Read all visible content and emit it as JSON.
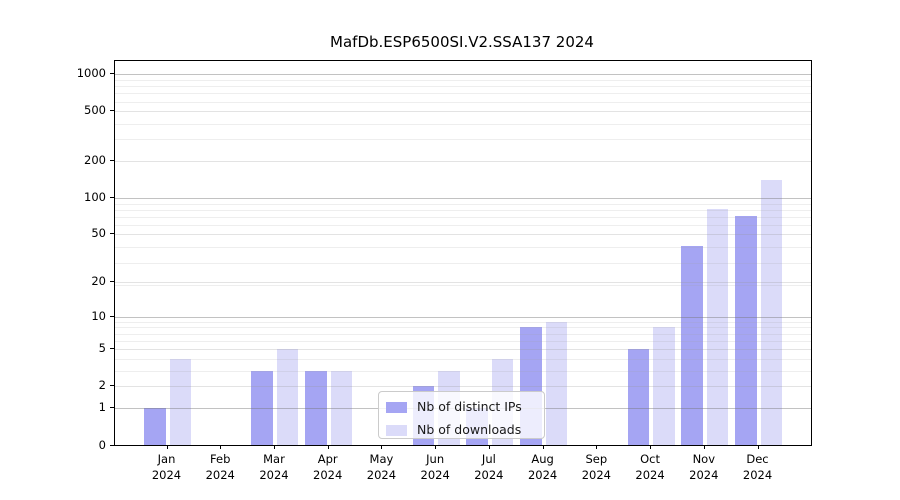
{
  "chart_data": {
    "type": "bar",
    "title": "MafDb.ESP6500SI.V2.SSA137 2024",
    "categories": [
      "Jan",
      "Feb",
      "Mar",
      "Apr",
      "May",
      "Jun",
      "Jul",
      "Aug",
      "Sep",
      "Oct",
      "Nov",
      "Dec"
    ],
    "x_year_label": "2024",
    "series": [
      {
        "name": "Nb of distinct IPs",
        "color": "#a5a5f3",
        "values": [
          1,
          0,
          3,
          3,
          0,
          2,
          1,
          8,
          0,
          5,
          40,
          70
        ]
      },
      {
        "name": "Nb of downloads",
        "color": "#dbdbf9",
        "values": [
          4,
          0,
          5,
          3,
          0,
          3,
          4,
          9,
          0,
          8,
          80,
          140
        ]
      }
    ],
    "xlabel": "",
    "ylabel": "",
    "yscale": "log1p",
    "ylim": [
      0,
      1280
    ],
    "yticks": [
      0,
      1,
      2,
      5,
      10,
      20,
      50,
      100,
      200,
      500,
      1000
    ],
    "grid": true,
    "legend_position": "lower-center"
  },
  "colors": {
    "bar_ips": "#a5a5f3",
    "bar_downloads": "#dbdbf9",
    "spine": "#000000",
    "grid_major": "#c4c4c4",
    "grid_mid": "#e2e2e2",
    "grid_minor": "#efefef",
    "background": "#ffffff"
  }
}
